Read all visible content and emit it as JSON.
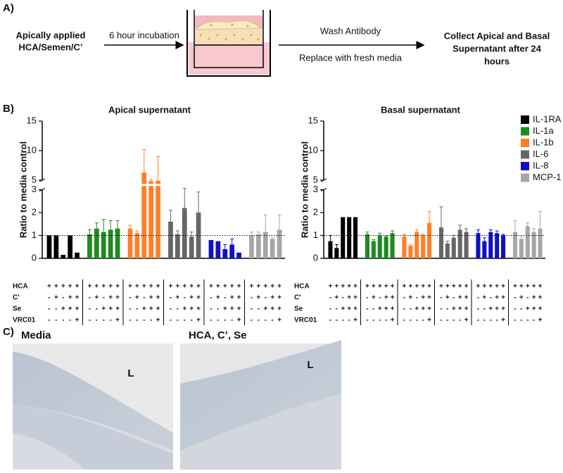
{
  "panel_a": {
    "label": "A)",
    "input_lines": [
      "Apically applied",
      "HCA/Semen/C’"
    ],
    "step1": "6 hour incubation",
    "step2_top": "Wash Antibody",
    "step2_bottom": "Replace with fresh media",
    "output_lines": [
      "Collect Apical and Basal",
      "Supernatant after 24",
      "hours"
    ]
  },
  "panel_b_label": "B)",
  "chart_data": [
    {
      "type": "bar",
      "title": "Apical supernatant",
      "y_label": "Ratio to media control",
      "ylim": [
        0,
        15
      ],
      "axis_break": [
        3,
        5
      ],
      "yticks": [
        0,
        1,
        2,
        3,
        5,
        10,
        15
      ],
      "ref_line": 1,
      "series": [
        {
          "color": "#000000",
          "values": [
            1.0,
            1.0,
            0.15,
            1.0,
            0.25
          ],
          "errors": [
            null,
            null,
            null,
            null,
            null
          ]
        },
        {
          "color": "#1f8a1f",
          "values": [
            1.05,
            1.3,
            1.15,
            1.25,
            1.3
          ],
          "errors": [
            0.2,
            0.25,
            0.55,
            0.4,
            0.35
          ]
        },
        {
          "color": "#ff7f27",
          "values": [
            1.3,
            1.1,
            6.3,
            4.8,
            4.9
          ],
          "errors": [
            0.15,
            0.1,
            3.9,
            0.3,
            4.1
          ]
        },
        {
          "color": "#666666",
          "values": [
            1.6,
            1.05,
            2.2,
            0.95,
            2.0
          ],
          "errors": [
            0.5,
            0.15,
            1.1,
            0.2,
            0.9
          ]
        },
        {
          "color": "#1010c8",
          "values": [
            0.8,
            0.75,
            0.4,
            0.6,
            0.25
          ],
          "errors": [
            null,
            null,
            0.2,
            0.25,
            null
          ]
        },
        {
          "color": "#a6a6a6",
          "values": [
            1.0,
            1.05,
            1.15,
            0.85,
            1.25
          ],
          "errors": [
            0.15,
            0.1,
            0.75,
            0.05,
            0.65
          ]
        }
      ],
      "conditions": {
        "labels": [
          "HCA",
          "C'",
          "Se",
          "VRC01"
        ],
        "rows": [
          [
            "+",
            "+",
            "+",
            "+",
            "+"
          ],
          [
            "-",
            "+",
            "-",
            "+",
            "+"
          ],
          [
            "-",
            "-",
            "+",
            "+",
            "+"
          ],
          [
            "-",
            "-",
            "-",
            "-",
            "+"
          ]
        ]
      }
    },
    {
      "type": "bar",
      "title": "Basal supernatant",
      "y_label": "Ratio to media control",
      "ylim": [
        0,
        15
      ],
      "axis_break": [
        3,
        5
      ],
      "yticks": [
        0,
        1,
        2,
        3,
        5,
        10,
        15
      ],
      "ref_line": 1,
      "legend": "upper right",
      "series": [
        {
          "name": "IL-1RA",
          "color": "#000000",
          "values": [
            0.75,
            0.45,
            1.8,
            1.8,
            1.8
          ],
          "errors": [
            0.25,
            0.15,
            null,
            null,
            null
          ]
        },
        {
          "name": "IL-1a",
          "color": "#1f8a1f",
          "values": [
            1.05,
            0.75,
            1.0,
            0.95,
            1.1
          ],
          "errors": [
            0.1,
            0.07,
            0.1,
            0.05,
            0.1
          ]
        },
        {
          "name": "IL-1b",
          "color": "#ff7f27",
          "values": [
            0.95,
            0.55,
            1.15,
            1.0,
            1.55
          ],
          "errors": [
            0.1,
            0.05,
            0.1,
            0.05,
            0.5
          ]
        },
        {
          "name": "IL-6",
          "color": "#666666",
          "values": [
            1.35,
            0.65,
            0.9,
            1.25,
            1.15
          ],
          "errors": [
            0.9,
            0.1,
            0.1,
            0.2,
            0.15
          ]
        },
        {
          "name": "IL-8",
          "color": "#1010c8",
          "values": [
            1.1,
            0.75,
            1.15,
            1.1,
            1.0
          ],
          "errors": [
            0.15,
            0.15,
            0.1,
            0.1,
            0.05
          ]
        },
        {
          "name": "MCP-1",
          "color": "#a6a6a6",
          "values": [
            1.15,
            0.85,
            1.4,
            1.15,
            1.3
          ],
          "errors": [
            0.5,
            0.1,
            0.15,
            0.15,
            0.75
          ]
        }
      ],
      "conditions": {
        "labels": [
          "HCA",
          "C'",
          "Se",
          "VRC01"
        ],
        "rows": [
          [
            "+",
            "+",
            "+",
            "+",
            "+"
          ],
          [
            "-",
            "+",
            "-",
            "+",
            "+"
          ],
          [
            "-",
            "-",
            "+",
            "+",
            "+"
          ],
          [
            "-",
            "-",
            "-",
            "-",
            "+"
          ]
        ]
      }
    }
  ],
  "panel_c": {
    "label": "C)",
    "images": [
      {
        "caption": "Media",
        "lumen_label": "L"
      },
      {
        "caption": "HCA, C’, Se",
        "lumen_label": "L"
      }
    ]
  }
}
